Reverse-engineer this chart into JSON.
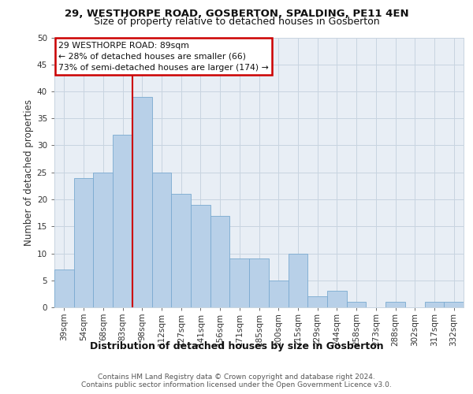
{
  "title1": "29, WESTHORPE ROAD, GOSBERTON, SPALDING, PE11 4EN",
  "title2": "Size of property relative to detached houses in Gosberton",
  "xlabel": "Distribution of detached houses by size in Gosberton",
  "ylabel": "Number of detached properties",
  "categories": [
    "39sqm",
    "54sqm",
    "68sqm",
    "83sqm",
    "98sqm",
    "112sqm",
    "127sqm",
    "141sqm",
    "156sqm",
    "171sqm",
    "185sqm",
    "200sqm",
    "215sqm",
    "229sqm",
    "244sqm",
    "258sqm",
    "273sqm",
    "288sqm",
    "302sqm",
    "317sqm",
    "332sqm"
  ],
  "values": [
    7,
    24,
    25,
    32,
    39,
    25,
    21,
    19,
    17,
    9,
    9,
    5,
    10,
    2,
    3,
    1,
    0,
    1,
    0,
    1,
    1
  ],
  "bar_color": "#b8d0e8",
  "bar_edge_color": "#7aaad0",
  "annotation_title": "29 WESTHORPE ROAD: 89sqm",
  "annotation_line1": "← 28% of detached houses are smaller (66)",
  "annotation_line2": "73% of semi-detached houses are larger (174) →",
  "annotation_box_color": "#ffffff",
  "annotation_box_edge": "#cc0000",
  "vline_color": "#cc0000",
  "vline_x_index": 3,
  "ylim": [
    0,
    50
  ],
  "yticks": [
    0,
    5,
    10,
    15,
    20,
    25,
    30,
    35,
    40,
    45,
    50
  ],
  "footer1": "Contains HM Land Registry data © Crown copyright and database right 2024.",
  "footer2": "Contains public sector information licensed under the Open Government Licence v3.0.",
  "bg_color": "#ffffff",
  "plot_bg_color": "#e8eef5",
  "grid_color": "#c8d4e0",
  "title1_fontsize": 9.5,
  "title2_fontsize": 9.0,
  "ylabel_fontsize": 8.5,
  "xlabel_fontsize": 9.0,
  "tick_fontsize": 7.5,
  "footer_fontsize": 6.5
}
